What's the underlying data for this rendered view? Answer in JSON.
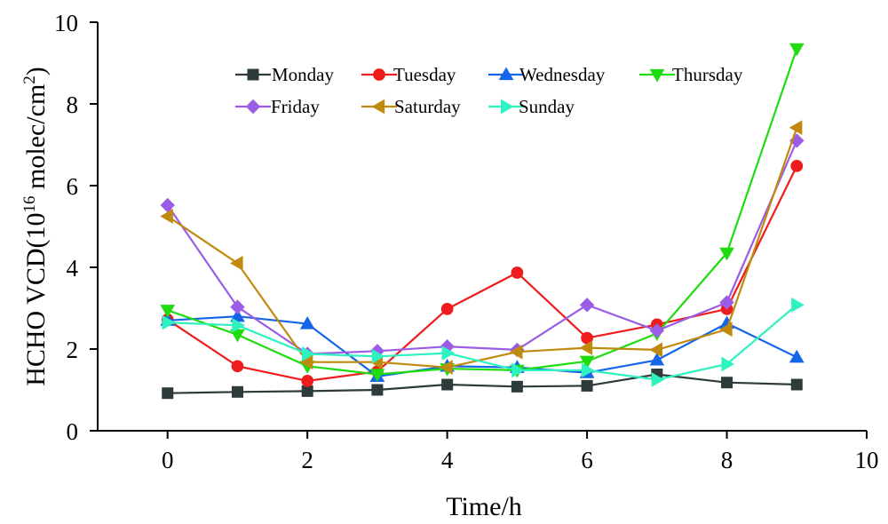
{
  "chart_data": {
    "type": "line",
    "xlabel": "Time/h",
    "ylabel_main": "HCHO VCD(10",
    "ylabel_exp1": "16",
    "ylabel_units": " molec/cm",
    "ylabel_exp2": "2",
    "ylabel_close": ")",
    "xlim": [
      -1,
      10
    ],
    "ylim": [
      0,
      10
    ],
    "xticks": [
      0,
      2,
      4,
      6,
      8,
      10
    ],
    "yticks": [
      0,
      2,
      4,
      6,
      8,
      10
    ],
    "grid": false,
    "legend_position": "top",
    "x": [
      0,
      1,
      2,
      3,
      4,
      5,
      6,
      7,
      8,
      9
    ],
    "series": [
      {
        "name": "Monday",
        "color": "#2e3b3b",
        "marker": "square",
        "values": [
          0.92,
          0.95,
          0.97,
          1.0,
          1.13,
          1.08,
          1.1,
          1.38,
          1.18,
          1.13
        ]
      },
      {
        "name": "Tuesday",
        "color": "#ee1c1c",
        "marker": "circle",
        "values": [
          2.72,
          1.58,
          1.22,
          1.45,
          2.98,
          3.87,
          2.27,
          2.6,
          2.98,
          6.48
        ]
      },
      {
        "name": "Wednesday",
        "color": "#1565e8",
        "marker": "triangle-up",
        "values": [
          2.7,
          2.8,
          2.62,
          1.33,
          1.58,
          1.55,
          1.42,
          1.73,
          2.63,
          1.8
        ]
      },
      {
        "name": "Thursday",
        "color": "#1fdc10",
        "marker": "triangle-down",
        "values": [
          2.95,
          2.35,
          1.58,
          1.38,
          1.52,
          1.48,
          1.7,
          2.38,
          4.35,
          9.35
        ]
      },
      {
        "name": "Friday",
        "color": "#9b5de5",
        "marker": "diamond",
        "values": [
          5.52,
          3.03,
          1.88,
          1.95,
          2.06,
          1.98,
          3.08,
          2.45,
          3.14,
          7.1
        ]
      },
      {
        "name": "Saturday",
        "color": "#c08a0f",
        "marker": "triangle-left",
        "values": [
          5.25,
          4.1,
          1.68,
          1.68,
          1.55,
          1.93,
          2.03,
          1.98,
          2.48,
          7.42
        ]
      },
      {
        "name": "Sunday",
        "color": "#2ef2c0",
        "marker": "triangle-right",
        "values": [
          2.65,
          2.58,
          1.88,
          1.82,
          1.9,
          1.48,
          1.48,
          1.25,
          1.63,
          3.08
        ]
      }
    ]
  }
}
